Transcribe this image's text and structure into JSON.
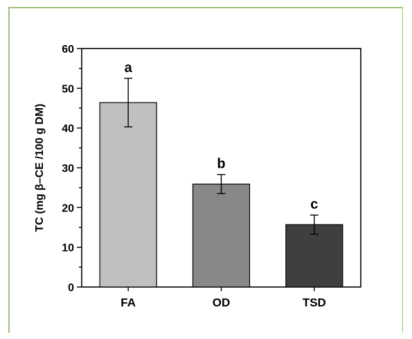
{
  "chart_data": {
    "type": "bar",
    "categories": [
      "FA",
      "OD",
      "TSD"
    ],
    "values": [
      46.4,
      25.9,
      15.7
    ],
    "errors": [
      6.1,
      2.4,
      2.4
    ],
    "significance_labels": [
      "a",
      "b",
      "c"
    ],
    "bar_colors": [
      "#c0c0c0",
      "#888888",
      "#3f3f3f"
    ],
    "ylabel": "TC (mg β–CE /100 g DM)",
    "xlabel": "",
    "title": "",
    "ylim": [
      0,
      60
    ],
    "yticks": [
      "0",
      "10",
      "20",
      "30",
      "40",
      "50",
      "60"
    ],
    "grid": false
  },
  "frame_color": "#9cc27a"
}
